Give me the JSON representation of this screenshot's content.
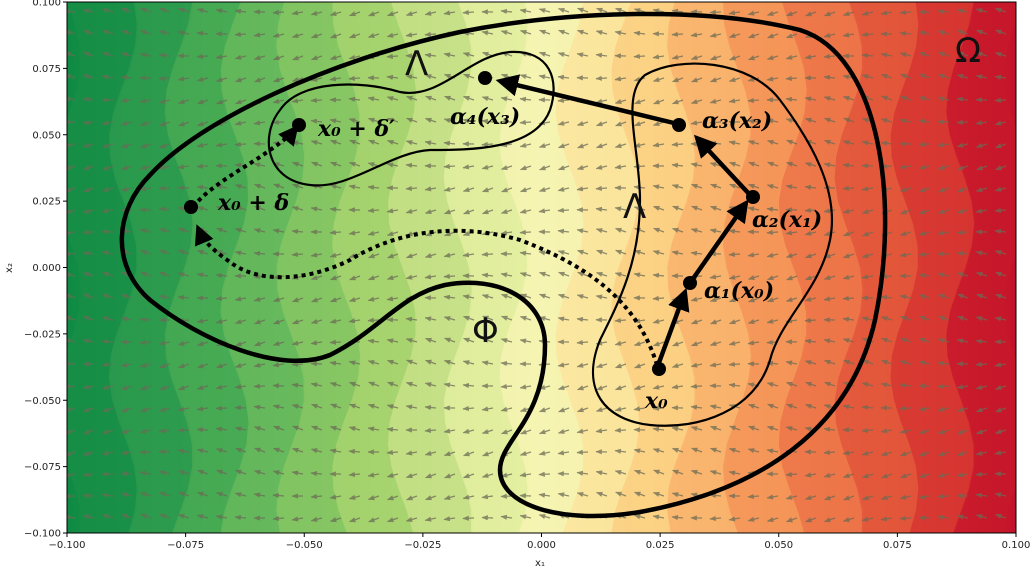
{
  "axes": {
    "xlabel": "x₁",
    "ylabel": "x₂",
    "xticks": [
      "−0.100",
      "−0.075",
      "−0.050",
      "−0.025",
      "0.000",
      "0.025",
      "0.050",
      "0.075",
      "0.100"
    ],
    "yticks": [
      "0.100",
      "0.075",
      "0.050",
      "0.025",
      "0.000",
      "−0.025",
      "−0.050",
      "−0.075",
      "−0.100"
    ],
    "xlim": [
      -0.1,
      0.1
    ],
    "ylim": [
      -0.1,
      0.1
    ]
  },
  "regions": {
    "omega": "Ω",
    "phi": "Φ",
    "lambda_upper": "Λ",
    "lambda_right": "Λ"
  },
  "points": {
    "x0": "x₀",
    "a1": "α₁(x₀)",
    "a2": "α₂(x₁)",
    "a3": "α₃(x₂)",
    "a4": "α₄(x₃)",
    "x0_delta": "x₀ + δ",
    "x0_delta_prime": "x₀ + δ′"
  },
  "colors": {
    "left": "#0e8a44",
    "center": "#f7f4b4",
    "right": "#c8102a",
    "arrows": "#6b6b55"
  }
}
